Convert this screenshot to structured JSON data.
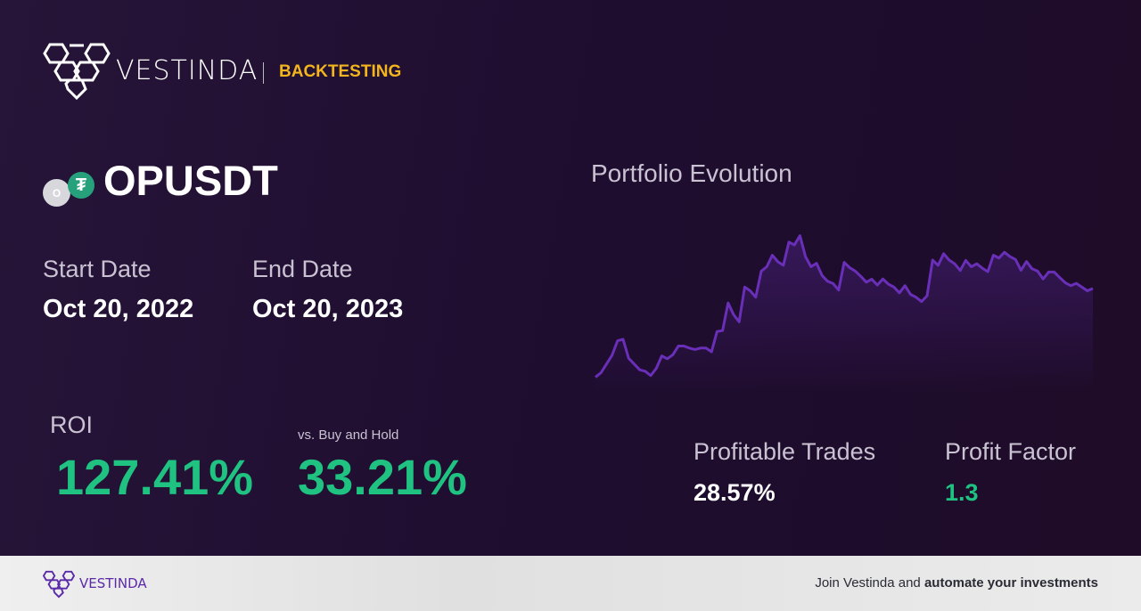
{
  "header": {
    "brand": "VESTINDA",
    "section": "BACKTESTING"
  },
  "pair": {
    "symbol": "OPUSDT",
    "base_icon_letter": "O",
    "quote_icon": "tether-icon"
  },
  "dates": {
    "start_label": "Start Date",
    "start_value": "Oct 20, 2022",
    "end_label": "End Date",
    "end_value": "Oct 20, 2023"
  },
  "metrics": {
    "roi_label": "ROI",
    "roi_value": "127.41%",
    "bh_label": "vs. Buy and Hold",
    "bh_value": "33.21%",
    "pt_label": "Profitable Trades",
    "pt_value": "28.57%",
    "pf_label": "Profit Factor",
    "pf_value": "1.3"
  },
  "colors": {
    "accent": "#f2b51c",
    "positive": "#1fc281",
    "line": "#6a2fb8",
    "background": "#1f0e2f"
  },
  "chart_data": {
    "type": "area",
    "title": "Portfolio Evolution",
    "values": [
      1,
      4,
      10,
      16,
      26,
      27,
      14,
      10,
      6,
      5,
      2,
      7,
      15.6,
      13.6,
      16.4,
      22.4,
      22.4,
      21,
      20,
      21,
      21,
      18.4,
      32.4,
      33,
      52,
      44,
      39,
      63,
      60.4,
      56,
      74,
      77,
      85,
      80.4,
      78,
      94,
      92,
      98.4,
      84,
      77,
      79.4,
      71,
      67,
      65.4,
      61,
      80,
      76.4,
      74,
      70.4,
      66.4,
      68.4,
      64.4,
      68.6,
      65,
      63,
      59,
      64,
      58,
      56,
      53,
      57,
      81.6,
      78,
      86,
      81.6,
      79,
      74.4,
      81.4,
      77,
      79,
      76,
      73.6,
      85,
      83,
      87,
      84,
      82,
      74.6,
      80.6,
      75.6,
      74,
      68.6,
      73.4,
      73.4,
      69.6,
      66,
      64,
      65.6,
      63,
      60.4,
      62
    ],
    "axes_visible": false,
    "grid": false
  },
  "footer": {
    "brand": "VESTINDA",
    "cta_plain": "Join Vestinda and ",
    "cta_bold": "automate your investments"
  }
}
